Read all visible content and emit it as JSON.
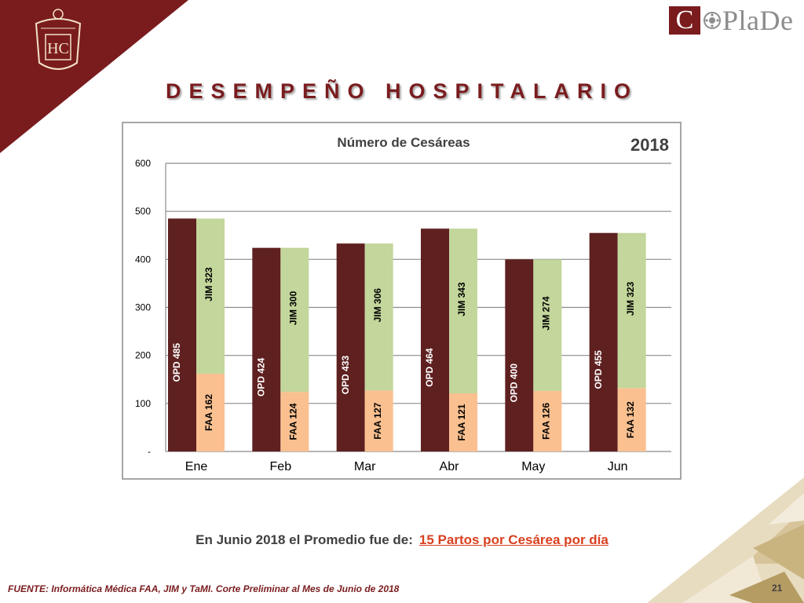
{
  "slide": {
    "title": "DESEMPEÑO HOSPITALARIO",
    "logo_text": "CoPlaDe",
    "logo_letter": "C",
    "logo_word": "PlaDe",
    "emblem_text": "HC",
    "summary_prefix": "En Junio 2018 el Promedio  fue de:",
    "summary_highlight": "15 Partos por Cesárea por día",
    "source": "FUENTE: Informática Médica  FAA, JIM y TaMI. Corte Preliminar al Mes de Junio de 2018",
    "page_number": "21"
  },
  "colors": {
    "brand": "#7a1c1e",
    "opd": "#5f2020",
    "jim": "#c3d69b",
    "faa": "#fac090",
    "highlight": "#d9401f"
  },
  "chart_data": {
    "type": "bar",
    "title": "Número de Cesáreas",
    "year_label": "2018",
    "categories": [
      "Ene",
      "Feb",
      "Mar",
      "Abr",
      "May",
      "Jun"
    ],
    "ylim": [
      0,
      600
    ],
    "yticks": [
      0,
      100,
      200,
      300,
      400,
      500,
      600
    ],
    "ytick_labels": [
      "-",
      "100",
      "200",
      "300",
      "400",
      "500",
      "600"
    ],
    "grid": true,
    "legend": "none",
    "series": [
      {
        "name": "OPD",
        "values": [
          485,
          424,
          433,
          464,
          400,
          455
        ]
      },
      {
        "name": "FAA",
        "values": [
          162,
          124,
          127,
          121,
          126,
          132
        ],
        "stack": "b"
      },
      {
        "name": "JIM",
        "values": [
          323,
          300,
          306,
          343,
          274,
          323
        ],
        "stack": "b"
      }
    ]
  }
}
